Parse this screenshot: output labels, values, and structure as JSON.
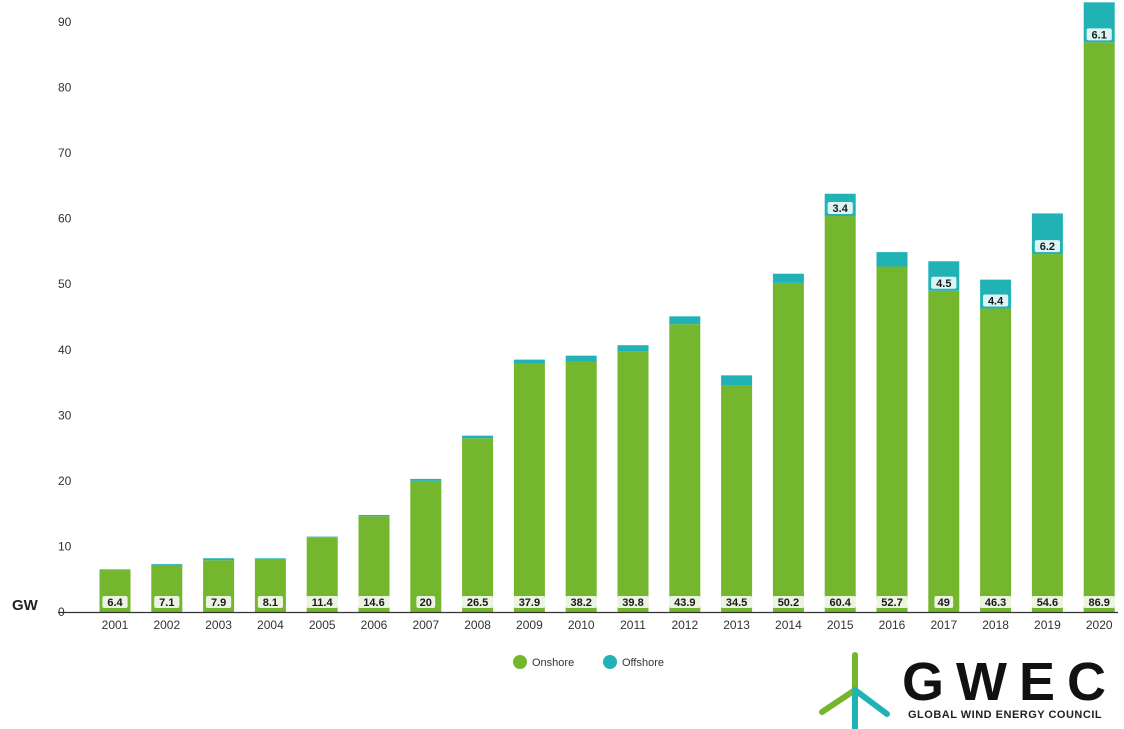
{
  "colors": {
    "onshore": "#74b62e",
    "offshore": "#20b2b5",
    "label_box": "#ffffff"
  },
  "logo": {
    "word": "GWEC",
    "subtitle": "GLOBAL WIND ENERGY COUNCIL"
  },
  "chart_data": {
    "type": "bar",
    "stacked": true,
    "unit_label": "GW",
    "categories": [
      "2001",
      "2002",
      "2003",
      "2004",
      "2005",
      "2006",
      "2007",
      "2008",
      "2009",
      "2010",
      "2011",
      "2012",
      "2013",
      "2014",
      "2015",
      "2016",
      "2017",
      "2018",
      "2019",
      "2020"
    ],
    "series": [
      {
        "name": "Onshore",
        "values": [
          6.4,
          7.1,
          7.9,
          8.1,
          11.4,
          14.6,
          20,
          26.5,
          37.9,
          38.2,
          39.8,
          43.9,
          34.5,
          50.2,
          60.4,
          52.7,
          49,
          46.3,
          54.6,
          86.9
        ],
        "labels": [
          "6.4",
          "7.1",
          "7.9",
          "8.1",
          "11.4",
          "14.6",
          "20",
          "26.5",
          "37.9",
          "38.2",
          "39.8",
          "43.9",
          "34.5",
          "50.2",
          "60.4",
          "52.7",
          "49",
          "46.3",
          "54.6",
          "86.9"
        ]
      },
      {
        "name": "Offshore",
        "values": [
          0.1,
          0.2,
          0.3,
          0.1,
          0.1,
          0.2,
          0.3,
          0.4,
          0.6,
          0.9,
          0.9,
          1.2,
          1.6,
          1.4,
          3.4,
          2.2,
          4.5,
          4.4,
          6.2,
          6.1
        ],
        "labels": [
          "",
          "",
          "",
          "",
          "",
          "",
          "",
          "",
          "",
          "",
          "",
          "",
          "",
          "",
          "3.4",
          "",
          "4.5",
          "4.4",
          "6.2",
          "6.1"
        ]
      }
    ],
    "yticks": [
      0,
      10,
      20,
      30,
      40,
      50,
      60,
      70,
      80,
      90
    ],
    "ylim": [
      0,
      93
    ],
    "legend": [
      "Onshore",
      "Offshore"
    ],
    "legend_position": "bottom-center",
    "grid": false
  }
}
